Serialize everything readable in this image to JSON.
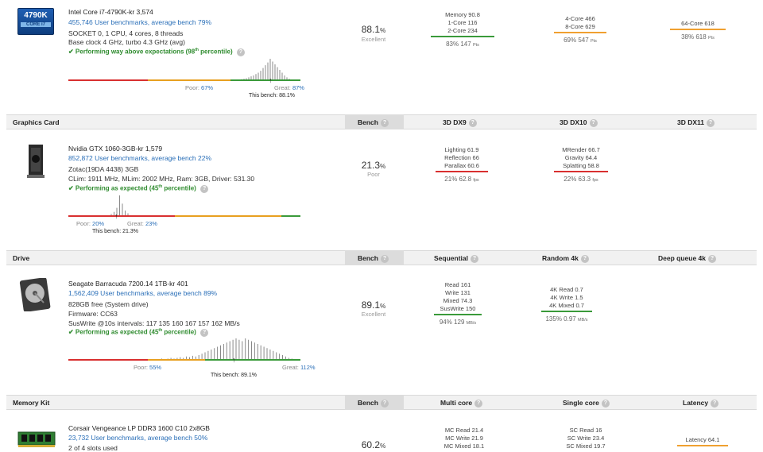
{
  "cpu": {
    "badge_top": "4790K",
    "badge_bottom": "CORE i7",
    "title": "Intel Core i7-4790K-kr 3,574",
    "benchmarks": "455,746 User benchmarks, average bench 79%",
    "info1": "SOCKET 0, 1 CPU, 4 cores, 8 threads",
    "info2": "Base clock 4 GHz, turbo 4.3 GHz (avg)",
    "perf_pre": "✔ Performing way above expectations (98",
    "perf_sup": "th",
    "perf_post": " percentile)",
    "score": "88.1",
    "score_unit": "%",
    "rating": "Excellent",
    "poor_label": "Poor:",
    "poor_val": "67%",
    "great_label": "Great:",
    "great_val": "87%",
    "this_bench": "This bench: 88.1%",
    "col1": {
      "lines": [
        "Memory 90.8",
        "1-Core 116",
        "2-Core 234"
      ],
      "sum": "83% 147",
      "unit": "Pts",
      "color": "#3a9a3a"
    },
    "col2": {
      "lines": [
        "4-Core 466",
        "8-Core 629"
      ],
      "sum": "69% 547",
      "unit": "Pts",
      "color": "#f0a030"
    },
    "col3": {
      "lines": [
        "64-Core 618"
      ],
      "sum": "38% 618",
      "unit": "Pts",
      "color": "#f0a030"
    },
    "hist": [
      1,
      1,
      2,
      2,
      3,
      3,
      4,
      5,
      6,
      8,
      10,
      12,
      15,
      18,
      22,
      28,
      34,
      40,
      48,
      42,
      36,
      30,
      24,
      18,
      12,
      8,
      5,
      3,
      2,
      1
    ],
    "bar_colors": [
      "#d93030",
      "#e8a020",
      "#3a9a3a"
    ]
  },
  "gpu_header": {
    "category": "Graphics Card",
    "bench": "Bench",
    "col1": "3D DX9",
    "col2": "3D DX10",
    "col3": "3D DX11"
  },
  "gpu": {
    "title": "Nvidia GTX 1060-3GB-kr 1,579",
    "benchmarks": "852,872 User benchmarks, average bench 22%",
    "info1": "Zotac(19DA 4438) 3GB",
    "info2": "CLim: 1911 MHz, MLim: 2002 MHz, Ram: 3GB, Driver: 531.30",
    "perf_pre": "✔ Performing as expected (45",
    "perf_sup": "th",
    "perf_post": " percentile)",
    "score": "21.3",
    "score_unit": "%",
    "rating": "Poor",
    "poor_label": "Poor:",
    "poor_val": "20%",
    "great_label": "Great:",
    "great_val": "23%",
    "this_bench": "This bench: 21.3%",
    "col1": {
      "lines": [
        "Lighting 61.9",
        "Reflection 66",
        "Parallax 60.6"
      ],
      "sum": "21% 62.8",
      "unit": "fps",
      "color": "#d93030"
    },
    "col2": {
      "lines": [
        "MRender 66.7",
        "Gravity 64.4",
        "Splatting 58.8"
      ],
      "sum": "22% 63.3",
      "unit": "fps",
      "color": "#d93030"
    },
    "hist": [
      3,
      6,
      12,
      30,
      18,
      8,
      4
    ]
  },
  "drive_header": {
    "category": "Drive",
    "bench": "Bench",
    "col1": "Sequential",
    "col2": "Random 4k",
    "col3": "Deep queue 4k"
  },
  "drive": {
    "title": "Seagate Barracuda 7200.14 1TB-kr 401",
    "benchmarks": "1,562,409 User benchmarks, average bench 89%",
    "info1": "828GB free (System drive)",
    "info2": "Firmware: CC63",
    "info3": "SusWrite @10s intervals: 117 135 160 167 157 162 MB/s",
    "perf_pre": "✔ Performing as expected (45",
    "perf_sup": "th",
    "perf_post": " percentile)",
    "score": "89.1",
    "score_unit": "%",
    "rating": "Excellent",
    "poor_label": "Poor:",
    "poor_val": "55%",
    "great_label": "Great:",
    "great_val": "112%",
    "this_bench": "This bench: 89.1%",
    "col1": {
      "lines": [
        "Read 161",
        "Write 131",
        "Mixed 74.3",
        "SusWrite 150"
      ],
      "sum": "94% 129",
      "unit": "MB/s",
      "color": "#3a9a3a"
    },
    "col2": {
      "lines": [
        "4K Read 0.7",
        "4K Write 1.5",
        "4K Mixed 0.7"
      ],
      "sum": "135% 0.97",
      "unit": "MB/s",
      "color": "#3a9a3a"
    },
    "hist": [
      1,
      1,
      2,
      1,
      2,
      2,
      3,
      2,
      3,
      4,
      3,
      4,
      5,
      4,
      6,
      5,
      7,
      6,
      8,
      10,
      12,
      14,
      16,
      18,
      20,
      22,
      24,
      26,
      28,
      30,
      32,
      30,
      28,
      32,
      30,
      28,
      26,
      24,
      22,
      20,
      18,
      16,
      14,
      12,
      10,
      8,
      6,
      4,
      3,
      2
    ]
  },
  "mem_header": {
    "category": "Memory Kit",
    "bench": "Bench",
    "col1": "Multi core",
    "col2": "Single core",
    "col3": "Latency"
  },
  "mem": {
    "title": "Corsair Vengeance LP DDR3 1600 C10 2x8GB",
    "benchmarks": "23,732 User benchmarks, average bench 50%",
    "info1": "2 of 4 slots used",
    "score": "60.2",
    "score_unit": "%",
    "col1": {
      "lines": [
        "MC Read 21.4",
        "MC Write 21.9",
        "MC Mixed 18.1"
      ]
    },
    "col2": {
      "lines": [
        "SC Read 16",
        "SC Write 23.4",
        "SC Mixed 19.7"
      ]
    },
    "col3": {
      "lines": [
        "Latency 64.1"
      ],
      "color": "#f0a030"
    }
  }
}
